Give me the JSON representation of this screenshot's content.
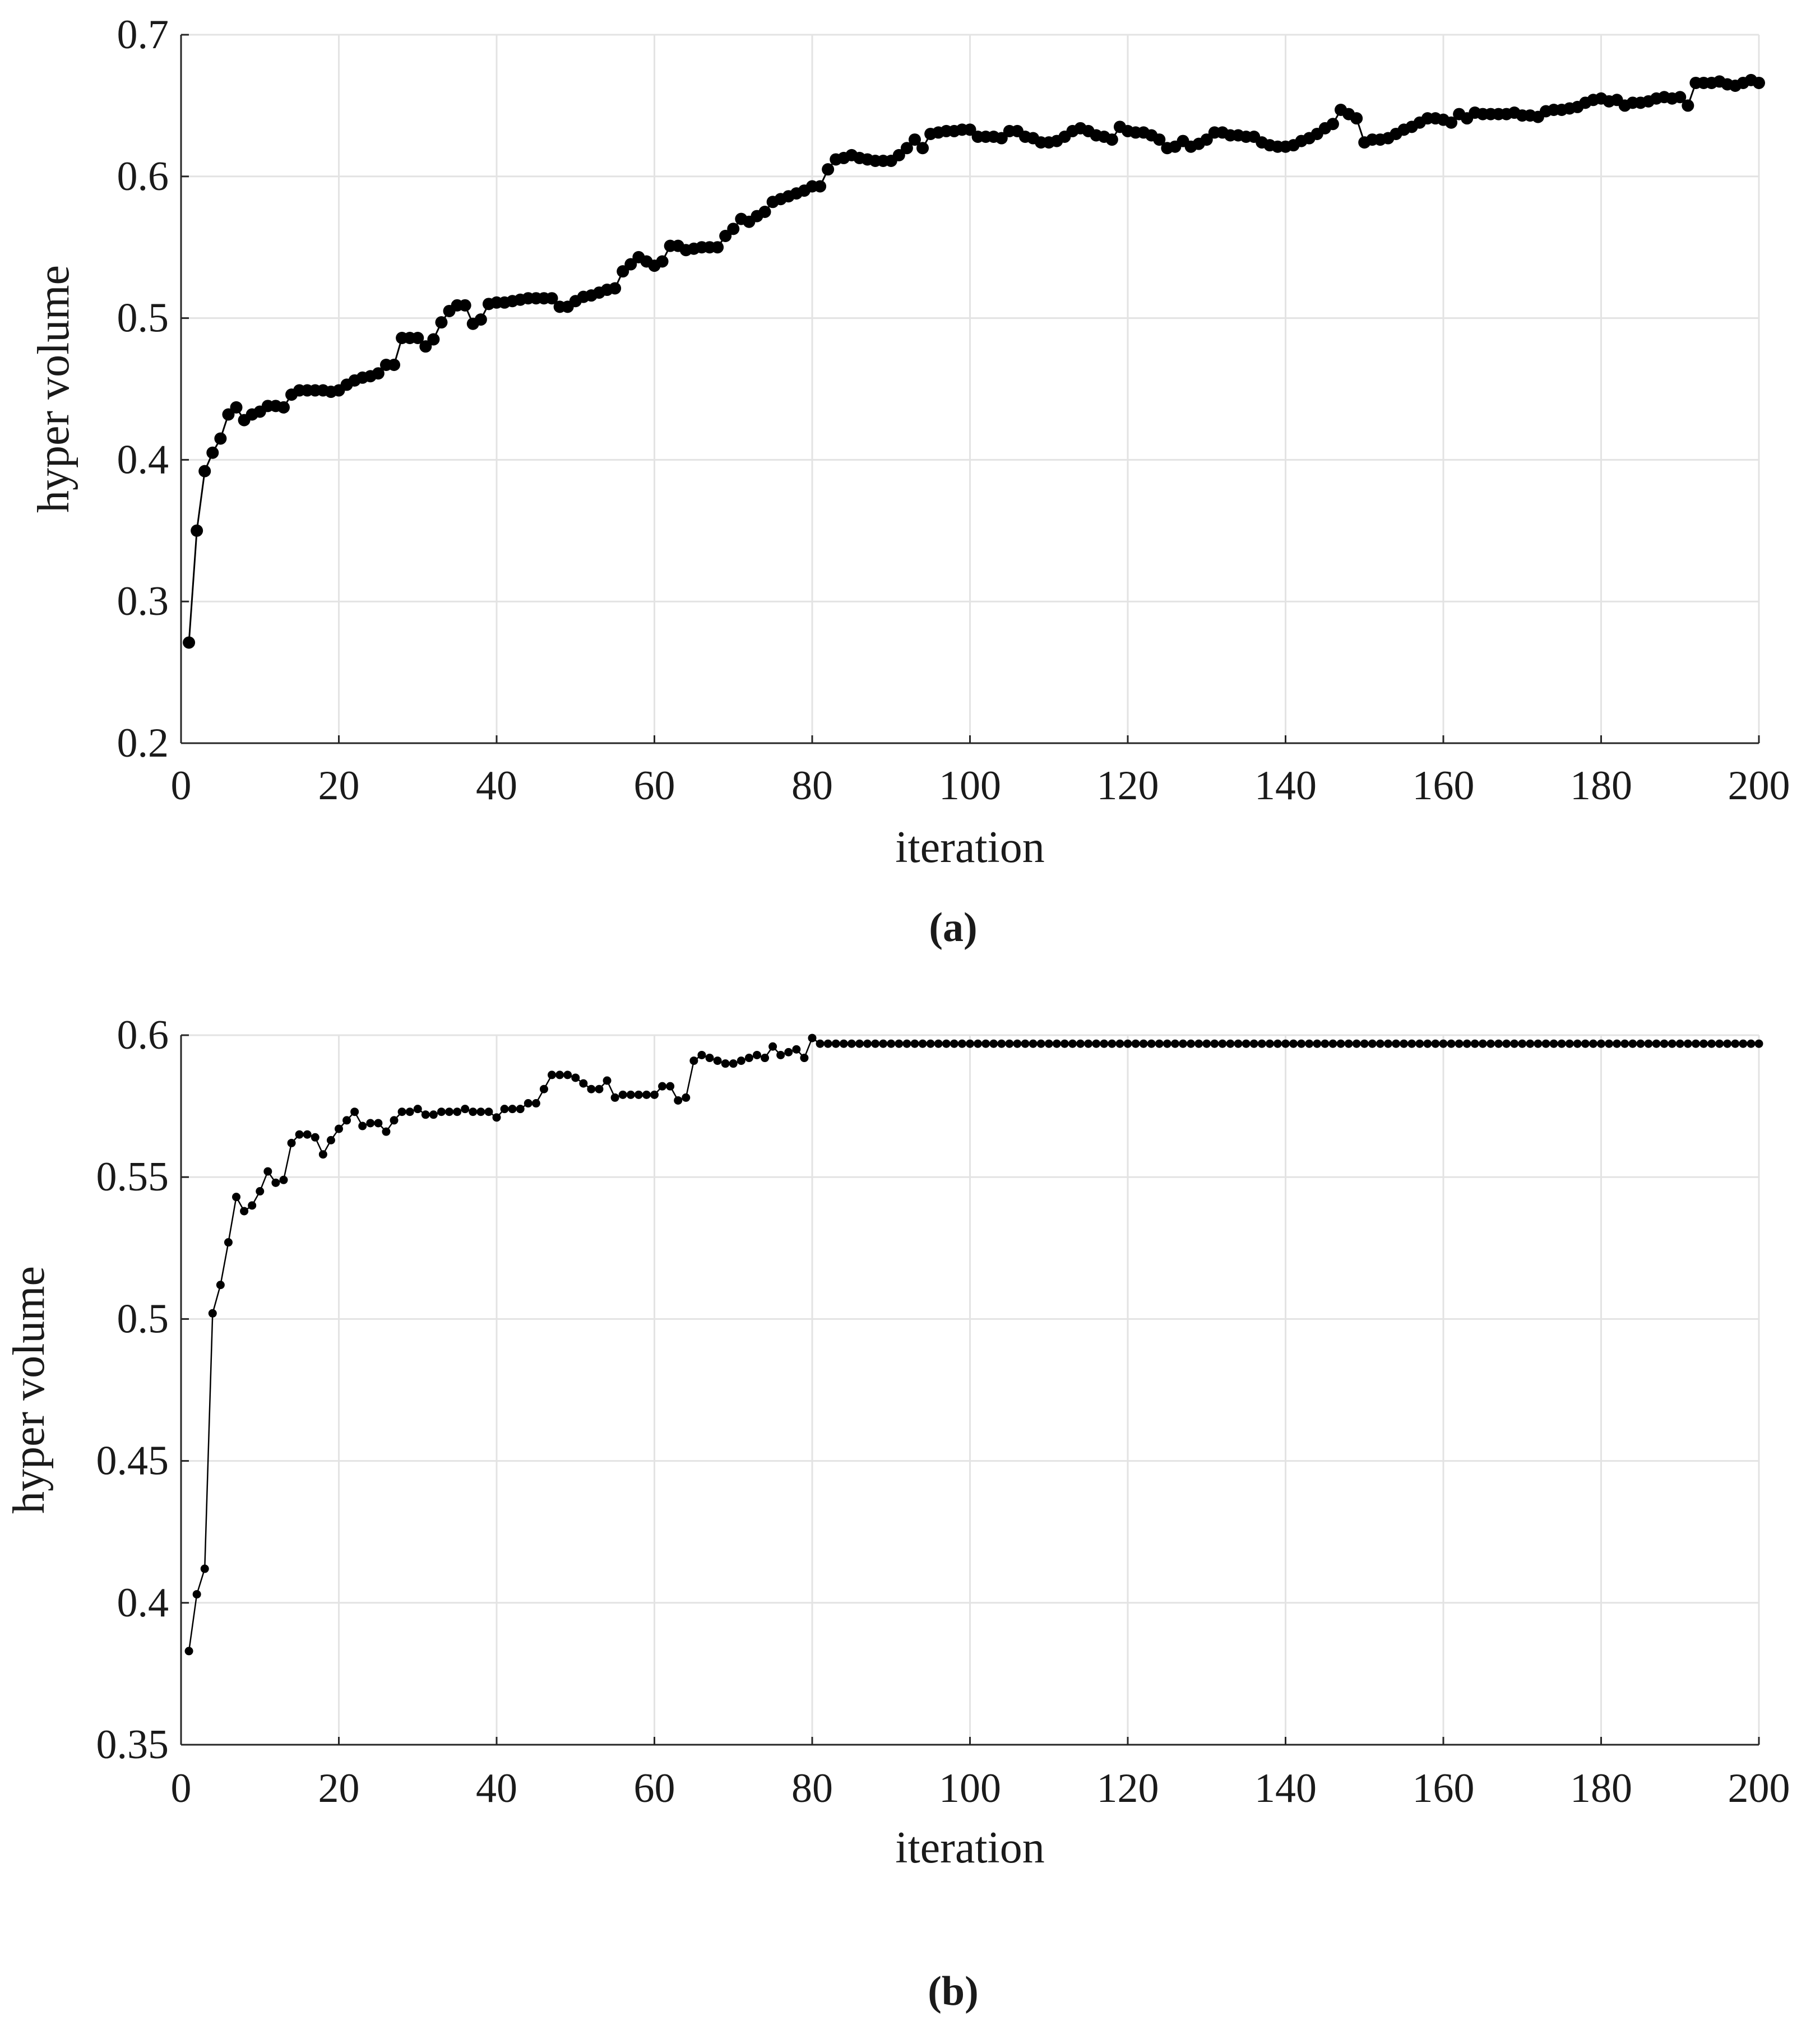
{
  "chart_data": [
    {
      "type": "line",
      "xlabel": "iteration",
      "ylabel": "hyper volume",
      "caption": "(a)",
      "color": "#000000",
      "grid": true,
      "xlim": [
        0,
        200
      ],
      "xticks": [
        0,
        20,
        40,
        60,
        80,
        100,
        120,
        140,
        160,
        180,
        200
      ],
      "ylim": [
        0.2,
        0.7
      ],
      "yticks": [
        0.2,
        0.3,
        0.4,
        0.5,
        0.6,
        0.7
      ],
      "x": [
        1,
        2,
        3,
        4,
        5,
        6,
        7,
        8,
        9,
        10,
        11,
        12,
        13,
        14,
        15,
        16,
        17,
        18,
        19,
        20,
        21,
        22,
        23,
        24,
        25,
        26,
        27,
        28,
        29,
        30,
        31,
        32,
        33,
        34,
        35,
        36,
        37,
        38,
        39,
        40,
        41,
        42,
        43,
        44,
        45,
        46,
        47,
        48,
        49,
        50,
        51,
        52,
        53,
        54,
        55,
        56,
        57,
        58,
        59,
        60,
        61,
        62,
        63,
        64,
        65,
        66,
        67,
        68,
        69,
        70,
        71,
        72,
        73,
        74,
        75,
        76,
        77,
        78,
        79,
        80,
        81,
        82,
        83,
        84,
        85,
        86,
        87,
        88,
        89,
        90,
        91,
        92,
        93,
        94,
        95,
        96,
        97,
        98,
        99,
        100,
        101,
        102,
        103,
        104,
        105,
        106,
        107,
        108,
        109,
        110,
        111,
        112,
        113,
        114,
        115,
        116,
        117,
        118,
        119,
        120,
        121,
        122,
        123,
        124,
        125,
        126,
        127,
        128,
        129,
        130,
        131,
        132,
        133,
        134,
        135,
        136,
        137,
        138,
        139,
        140,
        141,
        142,
        143,
        144,
        145,
        146,
        147,
        148,
        149,
        150,
        151,
        152,
        153,
        154,
        155,
        156,
        157,
        158,
        159,
        160,
        161,
        162,
        163,
        164,
        165,
        166,
        167,
        168,
        169,
        170,
        171,
        172,
        173,
        174,
        175,
        176,
        177,
        178,
        179,
        180,
        181,
        182,
        183,
        184,
        185,
        186,
        187,
        188,
        189,
        190,
        191,
        192,
        193,
        194,
        195,
        196,
        197,
        198,
        199,
        200
      ],
      "values": [
        0.271,
        0.35,
        0.392,
        0.405,
        0.415,
        0.432,
        0.437,
        0.428,
        0.432,
        0.434,
        0.438,
        0.438,
        0.437,
        0.446,
        0.449,
        0.449,
        0.449,
        0.449,
        0.448,
        0.449,
        0.453,
        0.456,
        0.458,
        0.459,
        0.461,
        0.467,
        0.467,
        0.486,
        0.486,
        0.486,
        0.48,
        0.485,
        0.497,
        0.505,
        0.509,
        0.509,
        0.496,
        0.499,
        0.51,
        0.511,
        0.511,
        0.512,
        0.513,
        0.514,
        0.514,
        0.514,
        0.514,
        0.508,
        0.508,
        0.512,
        0.515,
        0.516,
        0.518,
        0.52,
        0.521,
        0.533,
        0.538,
        0.543,
        0.54,
        0.537,
        0.54,
        0.551,
        0.551,
        0.548,
        0.549,
        0.55,
        0.55,
        0.55,
        0.558,
        0.563,
        0.57,
        0.568,
        0.572,
        0.575,
        0.582,
        0.584,
        0.586,
        0.588,
        0.59,
        0.593,
        0.593,
        0.605,
        0.612,
        0.613,
        0.615,
        0.613,
        0.612,
        0.611,
        0.611,
        0.611,
        0.615,
        0.62,
        0.626,
        0.62,
        0.63,
        0.631,
        0.632,
        0.632,
        0.633,
        0.633,
        0.628,
        0.628,
        0.628,
        0.627,
        0.632,
        0.632,
        0.628,
        0.627,
        0.624,
        0.624,
        0.625,
        0.628,
        0.632,
        0.634,
        0.632,
        0.629,
        0.628,
        0.626,
        0.635,
        0.632,
        0.631,
        0.631,
        0.629,
        0.626,
        0.62,
        0.621,
        0.625,
        0.621,
        0.623,
        0.626,
        0.631,
        0.631,
        0.629,
        0.629,
        0.628,
        0.628,
        0.624,
        0.622,
        0.621,
        0.621,
        0.622,
        0.625,
        0.627,
        0.63,
        0.634,
        0.637,
        0.647,
        0.644,
        0.641,
        0.624,
        0.626,
        0.626,
        0.627,
        0.63,
        0.633,
        0.635,
        0.638,
        0.641,
        0.641,
        0.64,
        0.638,
        0.644,
        0.641,
        0.645,
        0.644,
        0.644,
        0.644,
        0.644,
        0.645,
        0.643,
        0.643,
        0.642,
        0.646,
        0.647,
        0.647,
        0.648,
        0.649,
        0.652,
        0.654,
        0.655,
        0.653,
        0.654,
        0.65,
        0.652,
        0.652,
        0.653,
        0.655,
        0.656,
        0.655,
        0.656,
        0.65,
        0.666,
        0.666,
        0.666,
        0.667,
        0.665,
        0.664,
        0.666,
        0.668,
        0.666
      ]
    },
    {
      "type": "line",
      "xlabel": "iteration",
      "ylabel": "hyper volume",
      "caption": "(b)",
      "color": "#000000",
      "grid": true,
      "xlim": [
        0,
        200
      ],
      "xticks": [
        0,
        20,
        40,
        60,
        80,
        100,
        120,
        140,
        160,
        180,
        200
      ],
      "ylim": [
        0.35,
        0.6
      ],
      "yticks": [
        0.35,
        0.4,
        0.45,
        0.5,
        0.55,
        0.6
      ],
      "x": [
        1,
        2,
        3,
        4,
        5,
        6,
        7,
        8,
        9,
        10,
        11,
        12,
        13,
        14,
        15,
        16,
        17,
        18,
        19,
        20,
        21,
        22,
        23,
        24,
        25,
        26,
        27,
        28,
        29,
        30,
        31,
        32,
        33,
        34,
        35,
        36,
        37,
        38,
        39,
        40,
        41,
        42,
        43,
        44,
        45,
        46,
        47,
        48,
        49,
        50,
        51,
        52,
        53,
        54,
        55,
        56,
        57,
        58,
        59,
        60,
        61,
        62,
        63,
        64,
        65,
        66,
        67,
        68,
        69,
        70,
        71,
        72,
        73,
        74,
        75,
        76,
        77,
        78,
        79,
        80,
        81,
        82,
        83,
        84,
        85,
        86,
        87,
        88,
        89,
        90,
        91,
        92,
        93,
        94,
        95,
        96,
        97,
        98,
        99,
        100,
        101,
        102,
        103,
        104,
        105,
        106,
        107,
        108,
        109,
        110,
        111,
        112,
        113,
        114,
        115,
        116,
        117,
        118,
        119,
        120,
        121,
        122,
        123,
        124,
        125,
        126,
        127,
        128,
        129,
        130,
        131,
        132,
        133,
        134,
        135,
        136,
        137,
        138,
        139,
        140,
        141,
        142,
        143,
        144,
        145,
        146,
        147,
        148,
        149,
        150,
        151,
        152,
        153,
        154,
        155,
        156,
        157,
        158,
        159,
        160,
        161,
        162,
        163,
        164,
        165,
        166,
        167,
        168,
        169,
        170,
        171,
        172,
        173,
        174,
        175,
        176,
        177,
        178,
        179,
        180,
        181,
        182,
        183,
        184,
        185,
        186,
        187,
        188,
        189,
        190,
        191,
        192,
        193,
        194,
        195,
        196,
        197,
        198,
        199,
        200
      ],
      "values": [
        0.383,
        0.403,
        0.412,
        0.502,
        0.512,
        0.527,
        0.543,
        0.538,
        0.54,
        0.545,
        0.552,
        0.548,
        0.549,
        0.562,
        0.565,
        0.565,
        0.564,
        0.558,
        0.563,
        0.567,
        0.57,
        0.573,
        0.568,
        0.569,
        0.569,
        0.566,
        0.57,
        0.573,
        0.573,
        0.574,
        0.572,
        0.572,
        0.573,
        0.573,
        0.573,
        0.574,
        0.573,
        0.573,
        0.573,
        0.571,
        0.574,
        0.574,
        0.574,
        0.576,
        0.576,
        0.581,
        0.586,
        0.586,
        0.586,
        0.585,
        0.583,
        0.581,
        0.581,
        0.584,
        0.578,
        0.579,
        0.579,
        0.579,
        0.579,
        0.579,
        0.582,
        0.582,
        0.577,
        0.578,
        0.591,
        0.593,
        0.592,
        0.591,
        0.59,
        0.59,
        0.591,
        0.592,
        0.593,
        0.592,
        0.596,
        0.593,
        0.594,
        0.595,
        0.592,
        0.599,
        0.597,
        0.597,
        0.597,
        0.597,
        0.597,
        0.597,
        0.597,
        0.597,
        0.597,
        0.597,
        0.597,
        0.597,
        0.597,
        0.597,
        0.597,
        0.597,
        0.597,
        0.597,
        0.597,
        0.597,
        0.597,
        0.597,
        0.597,
        0.597,
        0.597,
        0.597,
        0.597,
        0.597,
        0.597,
        0.597,
        0.597,
        0.597,
        0.597,
        0.597,
        0.597,
        0.597,
        0.597,
        0.597,
        0.597,
        0.597,
        0.597,
        0.597,
        0.597,
        0.597,
        0.597,
        0.597,
        0.597,
        0.597,
        0.597,
        0.597,
        0.597,
        0.597,
        0.597,
        0.597,
        0.597,
        0.597,
        0.597,
        0.597,
        0.597,
        0.597,
        0.597,
        0.597,
        0.597,
        0.597,
        0.597,
        0.597,
        0.597,
        0.597,
        0.597,
        0.597,
        0.597,
        0.597,
        0.597,
        0.597,
        0.597,
        0.597,
        0.597,
        0.597,
        0.597,
        0.597,
        0.597,
        0.597,
        0.597,
        0.597,
        0.597,
        0.597,
        0.597,
        0.597,
        0.597,
        0.597,
        0.597,
        0.597,
        0.597,
        0.597,
        0.597,
        0.597,
        0.597,
        0.597,
        0.597,
        0.597,
        0.597,
        0.597,
        0.597,
        0.597,
        0.597,
        0.597,
        0.597,
        0.597,
        0.597,
        0.597,
        0.597,
        0.597,
        0.597,
        0.597,
        0.597,
        0.597,
        0.597,
        0.597,
        0.597,
        0.597
      ]
    }
  ]
}
